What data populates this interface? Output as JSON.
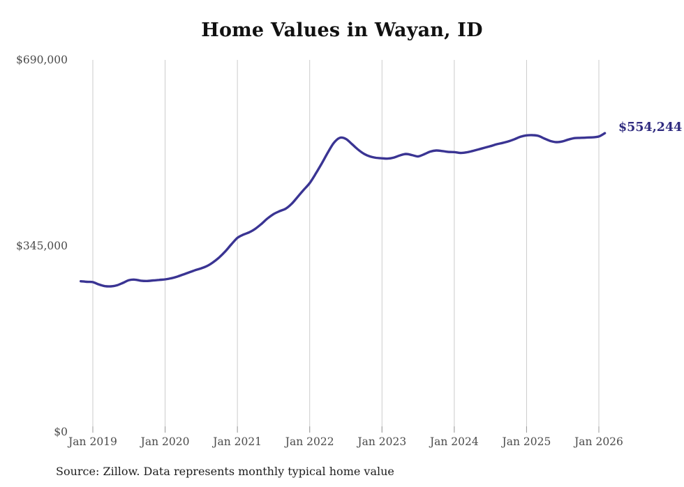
{
  "page": {
    "background": "#ffffff"
  },
  "chart_data": {
    "type": "line",
    "title": "Home Values in Wayan, ID",
    "source_note": "Source: Zillow. Data represents monthly typical home value",
    "end_label": "$554,244",
    "end_value": 554244,
    "currency": "USD",
    "frequency": "monthly",
    "start_month": "2018-11",
    "end_month": "2026-02",
    "x_tick_labels": [
      "Jan 2019",
      "Jan 2020",
      "Jan 2021",
      "Jan 2022",
      "Jan 2023",
      "Jan 2024",
      "Jan 2025",
      "Jan 2026"
    ],
    "y_ticks": [
      {
        "label": "$690,000",
        "value": 690000
      },
      {
        "label": "$345,000",
        "value": 345000
      },
      {
        "label": "$0",
        "value": 0
      }
    ],
    "ylim": [
      0,
      690000
    ],
    "grid": "vertical",
    "legend": "none",
    "series": [
      {
        "name": "Typical home value",
        "values": [
          279500,
          278500,
          278000,
          273500,
          270500,
          270000,
          272000,
          276500,
          281500,
          282500,
          280500,
          280000,
          281000,
          282000,
          283000,
          285000,
          288000,
          292000,
          296000,
          300000,
          303500,
          308000,
          315000,
          324000,
          335000,
          348000,
          360000,
          366000,
          370500,
          377000,
          386000,
          396000,
          404000,
          409500,
          414000,
          423000,
          436000,
          449000,
          461500,
          479000,
          498000,
          518000,
          536000,
          545500,
          543500,
          534000,
          524000,
          516000,
          511000,
          508500,
          507500,
          507000,
          509000,
          513000,
          515500,
          513500,
          511000,
          515000,
          520000,
          522000,
          521000,
          519500,
          519000,
          517500,
          518500,
          521000,
          524000,
          527000,
          530000,
          533500,
          536000,
          539000,
          543000,
          547500,
          550000,
          550500,
          549000,
          544000,
          539500,
          537500,
          539000,
          542500,
          545000,
          545500,
          546000,
          546500,
          548000,
          554244
        ]
      }
    ],
    "colors": {
      "line": "#3a3493",
      "grid": "#cbcbcb",
      "tick": "#999999",
      "axis_text": "#4b4b4b",
      "title_text": "#111111",
      "value_label": "#2f2b7f",
      "source_text": "#1d1d1d",
      "background": "#ffffff"
    }
  }
}
